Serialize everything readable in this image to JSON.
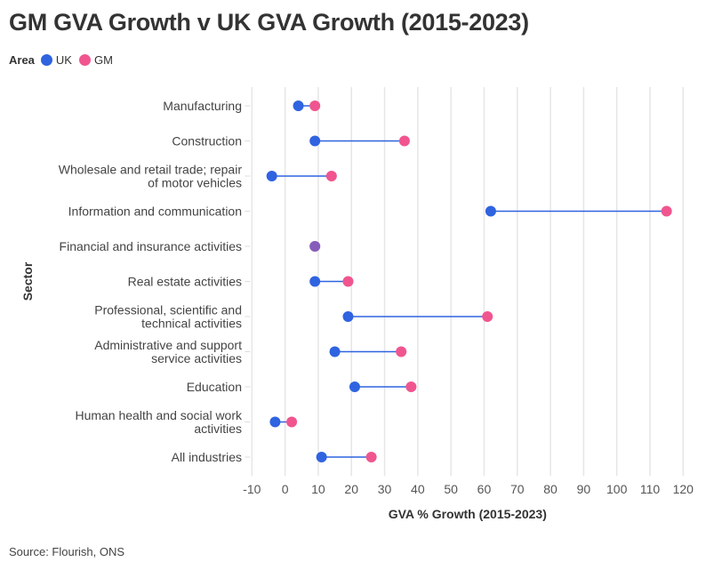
{
  "title": "GM GVA Growth v UK GVA Growth (2015-2023)",
  "legend": {
    "title": "Area",
    "items": [
      {
        "label": "UK",
        "color": "#2f63e0"
      },
      {
        "label": "GM",
        "color": "#f0558f"
      }
    ]
  },
  "source": "Source: Flourish, ONS",
  "chart_data": {
    "type": "dumbbell",
    "title": "GM GVA Growth v UK GVA Growth (2015-2023)",
    "xlabel": "GVA % Growth (2015-2023)",
    "ylabel": "Sector",
    "xlim": [
      -10,
      120
    ],
    "xticks": [
      -10,
      0,
      10,
      20,
      30,
      40,
      50,
      60,
      70,
      80,
      90,
      100,
      110,
      120
    ],
    "grid": true,
    "legend_position": "top-left",
    "categories": [
      [
        "Manufacturing"
      ],
      [
        "Construction"
      ],
      [
        "Wholesale and retail trade; repair",
        "of motor vehicles"
      ],
      [
        "Information and communication"
      ],
      [
        "Financial and insurance activities"
      ],
      [
        "Real estate activities"
      ],
      [
        "Professional, scientific and",
        "technical activities"
      ],
      [
        "Administrative and support",
        "service activities"
      ],
      [
        "Education"
      ],
      [
        "Human health and social work",
        "activities"
      ],
      [
        "All industries"
      ]
    ],
    "series": [
      {
        "name": "UK",
        "color": "#2f63e0",
        "values": [
          4,
          9,
          -4,
          62,
          9,
          9,
          19,
          15,
          21,
          -3,
          11
        ]
      },
      {
        "name": "GM",
        "color": "#f0558f",
        "values": [
          9,
          36,
          14,
          115,
          9,
          19,
          61,
          35,
          38,
          2,
          26
        ]
      }
    ],
    "line_color": "#2f63e0"
  }
}
